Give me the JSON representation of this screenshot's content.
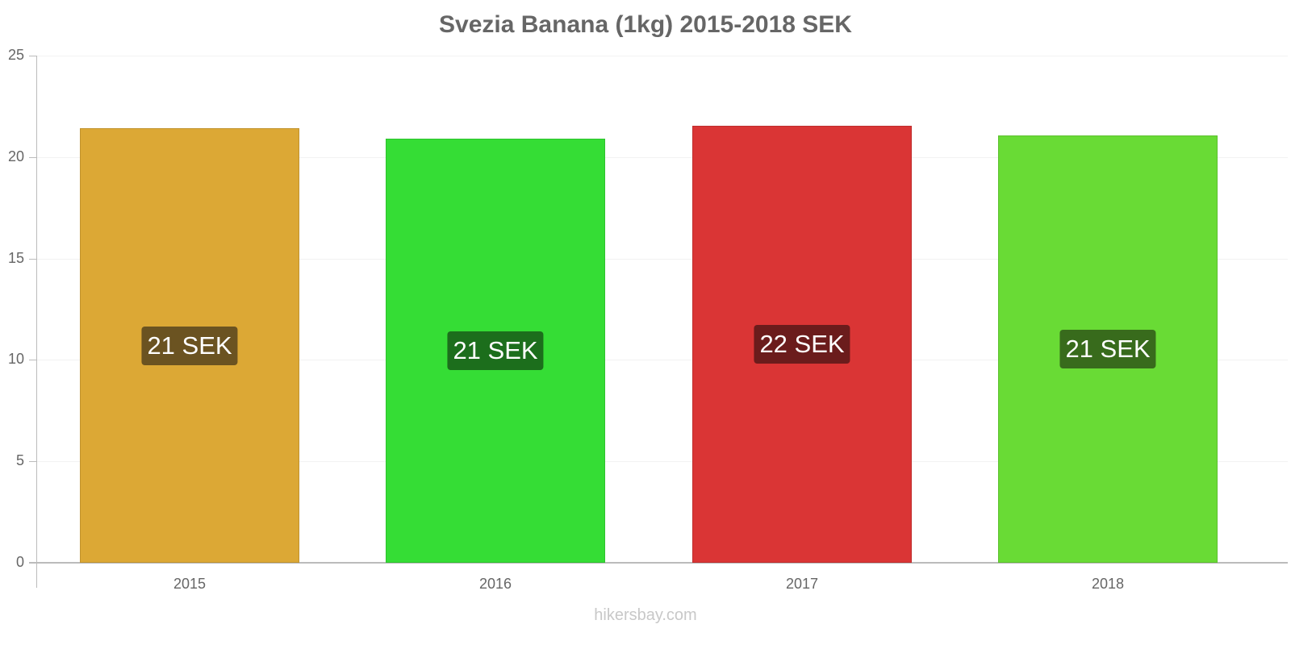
{
  "title": "Svezia Banana (1kg) 2015-2018 SEK",
  "footer": "hikersbay.com",
  "yaxis": {
    "ticks": [
      "0",
      "5",
      "10",
      "15",
      "20",
      "25"
    ]
  },
  "bars": [
    {
      "year": "2015",
      "value": 21.42,
      "label": "21 SEK",
      "color": "#dca835",
      "label_bg": "#6b5321"
    },
    {
      "year": "2016",
      "value": 20.9,
      "label": "21 SEK",
      "color": "#35dd35",
      "label_bg": "#1c6e1c"
    },
    {
      "year": "2017",
      "value": 21.55,
      "label": "22 SEK",
      "color": "#da3535",
      "label_bg": "#6b1c1c"
    },
    {
      "year": "2018",
      "value": 21.05,
      "label": "21 SEK",
      "color": "#69db35",
      "label_bg": "#386b1c"
    }
  ],
  "chart_data": {
    "type": "bar",
    "title": "Svezia Banana (1kg) 2015-2018 SEK",
    "categories": [
      "2015",
      "2016",
      "2017",
      "2018"
    ],
    "values": [
      21.42,
      20.9,
      21.55,
      21.05
    ],
    "data_labels": [
      "21 SEK",
      "21 SEK",
      "22 SEK",
      "21 SEK"
    ],
    "xlabel": "",
    "ylabel": "",
    "ylim": [
      0,
      25
    ],
    "yticks": [
      0,
      5,
      10,
      15,
      20,
      25
    ],
    "grid": true,
    "legend": "none",
    "source": "hikersbay.com"
  }
}
